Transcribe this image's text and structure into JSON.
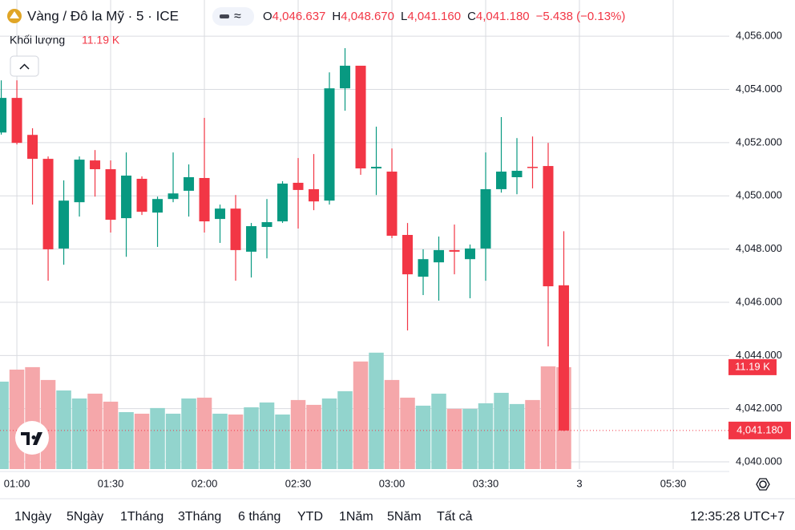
{
  "header": {
    "symbol": "Vàng / Đô la Mỹ · 5 · ICE",
    "open_label": "O",
    "open": "4,046.637",
    "high_label": "H",
    "high": "4,048.670",
    "low_label": "L",
    "low": "4,041.160",
    "close_label": "C",
    "close": "4,041.180",
    "change": "−5.438 (−0.13%)",
    "volume_title": "Khối lượng",
    "volume": "11.19 K"
  },
  "chart_data": {
    "type": "candlestick",
    "x": [
      0,
      1,
      2,
      3,
      4,
      5,
      6,
      7,
      8,
      9,
      10,
      11,
      12,
      13,
      14,
      15,
      16,
      17,
      18,
      19,
      20,
      21,
      22,
      23,
      24,
      25,
      26,
      27,
      28,
      29,
      30,
      31,
      32,
      33,
      34,
      35,
      36
    ],
    "series": {
      "open": [
        4052.38,
        4053.68,
        4052.29,
        4051.39,
        4048.02,
        4049.76,
        4051.33,
        4051.0,
        4049.16,
        4050.64,
        4049.37,
        4049.88,
        4050.19,
        4050.67,
        4049.13,
        4049.52,
        4047.9,
        4048.83,
        4049.04,
        4050.49,
        4050.25,
        4049.82,
        4054.04,
        4054.89,
        4051.03,
        4050.91,
        4048.53,
        4046.96,
        4047.5,
        4047.96,
        4047.62,
        4048.02,
        4050.25,
        4050.7,
        4051.09,
        4051.12,
        4046.637
      ],
      "high": [
        4054.34,
        4054.34,
        4052.54,
        4051.48,
        4050.58,
        4051.48,
        4051.72,
        4051.33,
        4051.63,
        4050.73,
        4049.97,
        4051.63,
        4051.18,
        4052.93,
        4049.67,
        4050.03,
        4048.98,
        4049.88,
        4050.55,
        4051.42,
        4051.57,
        4054.64,
        4055.55,
        4054.89,
        4052.6,
        4051.78,
        4048.98,
        4047.99,
        4048.47,
        4048.92,
        4048.17,
        4051.63,
        4052.96,
        4052.17,
        4052.23,
        4051.99,
        4048.67
      ],
      "low": [
        4052.3,
        4051.93,
        4049.67,
        4046.81,
        4047.41,
        4049.22,
        4049.97,
        4048.62,
        4047.71,
        4049.28,
        4048.08,
        4049.76,
        4049.22,
        4048.62,
        4048.23,
        4046.81,
        4046.93,
        4047.65,
        4048.98,
        4048.77,
        4049.46,
        4049.67,
        4053.2,
        4050.79,
        4050.03,
        4048.41,
        4044.94,
        4046.27,
        4046.06,
        4047.05,
        4046.15,
        4046.81,
        4050.12,
        4050.06,
        4050.28,
        4044.34,
        4041.16
      ],
      "close": [
        4053.68,
        4051.99,
        4051.39,
        4047.99,
        4049.82,
        4051.36,
        4051.0,
        4049.1,
        4050.76,
        4049.4,
        4049.88,
        4050.09,
        4050.7,
        4049.04,
        4049.52,
        4047.96,
        4048.86,
        4049.01,
        4050.46,
        4050.22,
        4049.79,
        4054.04,
        4054.89,
        4051.03,
        4051.09,
        4048.5,
        4047.05,
        4047.62,
        4047.96,
        4047.9,
        4048.02,
        4050.25,
        4050.91,
        4050.94,
        4051.06,
        4046.6,
        4041.18
      ],
      "volume": [
        9.6,
        10.92,
        11.19,
        9.78,
        8.63,
        7.75,
        8.28,
        7.4,
        6.25,
        6.08,
        6.7,
        6.08,
        7.75,
        7.84,
        6.08,
        5.99,
        6.78,
        7.31,
        5.99,
        7.58,
        7.05,
        7.75,
        8.55,
        11.81,
        12.78,
        9.78,
        7.84,
        6.96,
        8.28,
        6.61,
        6.61,
        7.22,
        8.37,
        7.14,
        7.58,
        11.28,
        11.19
      ]
    },
    "up_color": "#089981",
    "down_color": "#f23645",
    "volume_up_color": "#92d4cd",
    "volume_down_color": "#f5a7aa",
    "last_price_label": "4,041.180",
    "xlim": [
      -0.08,
      46.59
    ],
    "xticks": [
      {
        "value": 1,
        "label": "01:00"
      },
      {
        "value": 7,
        "label": "01:30"
      },
      {
        "value": 13,
        "label": "02:00"
      },
      {
        "value": 19,
        "label": "02:30"
      },
      {
        "value": 25,
        "label": "03:00"
      },
      {
        "value": 31,
        "label": "03:30"
      },
      {
        "value": 37,
        "label": "3"
      },
      {
        "value": 43,
        "label": "05:30"
      }
    ],
    "ylim": [
      4039.73,
      4057.36
    ],
    "yticks": [
      {
        "value": 4040,
        "label": "4,040.000"
      },
      {
        "value": 4042,
        "label": "4,042.000"
      },
      {
        "value": 4044,
        "label": "4,044.000"
      },
      {
        "value": 4046,
        "label": "4,046.000"
      },
      {
        "value": 4048,
        "label": "4,048.000"
      },
      {
        "value": 4050,
        "label": "4,050.000"
      },
      {
        "value": 4052,
        "label": "4,052.000"
      },
      {
        "value": 4054,
        "label": "4,054.000"
      },
      {
        "value": 4056,
        "label": "4,056.000"
      }
    ],
    "y2lim": [
      0,
      51.5
    ],
    "grid": true
  },
  "toolbar": {
    "ranges": [
      "1Ngày",
      "5Ngày",
      "1Tháng",
      "3Tháng",
      "6 tháng",
      "YTD",
      "1Năm",
      "5Năm",
      "Tất cả"
    ],
    "clock": "12:35:28 UTC+7"
  }
}
